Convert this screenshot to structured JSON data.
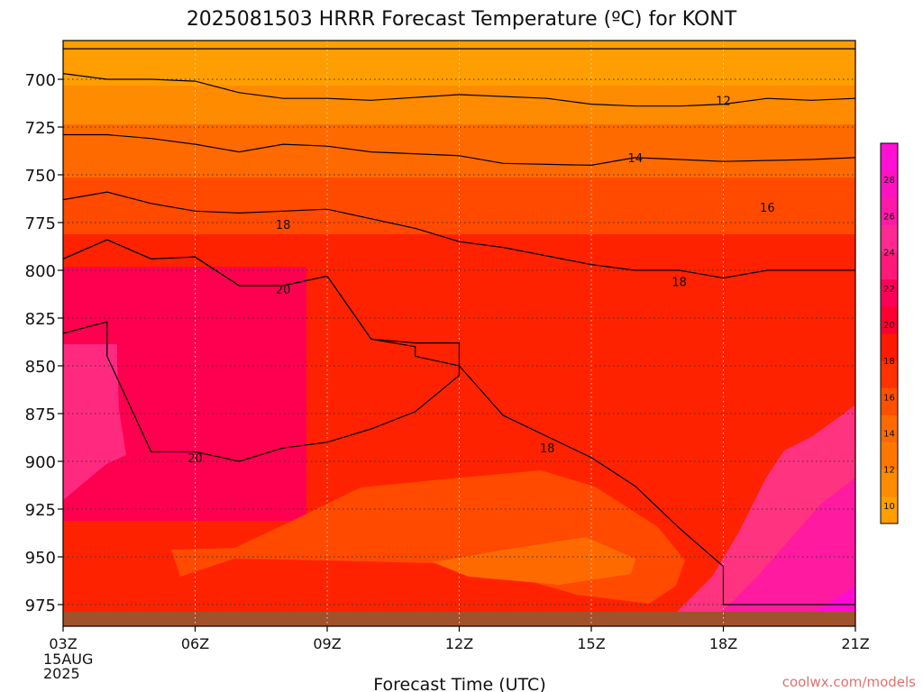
{
  "chart_data": {
    "type": "contour",
    "title": "2025081503 HRRR Forecast Temperature (ºC) for KONT",
    "xlabel": "Forecast Time (UTC)",
    "ylabel": "",
    "x_ticks": [
      "03Z",
      "06Z",
      "09Z",
      "12Z",
      "15Z",
      "18Z",
      "21Z"
    ],
    "x_start_date_lines": [
      "15AUG",
      "2025"
    ],
    "y_ticks": [
      700,
      725,
      750,
      775,
      800,
      825,
      850,
      875,
      900,
      925,
      950,
      975
    ],
    "ylim": [
      1000,
      680
    ],
    "grid": true,
    "colorbar_labels": [
      10,
      12,
      14,
      16,
      18,
      20,
      22,
      24,
      26,
      28
    ],
    "contour_labels": [
      {
        "text": "12",
        "time": "18Z",
        "pressure": 711
      },
      {
        "text": "14",
        "time": "16Z",
        "pressure": 741
      },
      {
        "text": "16",
        "time": "19Z",
        "pressure": 767
      },
      {
        "text": "18",
        "time": "08Z",
        "pressure": 776
      },
      {
        "text": "18",
        "time": "17Z",
        "pressure": 806
      },
      {
        "text": "20",
        "time": "08Z",
        "pressure": 810
      },
      {
        "text": "18",
        "time": "14Z",
        "pressure": 893
      },
      {
        "text": "20",
        "time": "06Z",
        "pressure": 898
      }
    ],
    "series": [
      {
        "name": "10",
        "points": [
          [
            "03Z",
            684
          ],
          [
            "04Z",
            684
          ],
          [
            "06Z",
            684
          ],
          [
            "08Z",
            684
          ],
          [
            "10Z",
            684
          ],
          [
            "12Z",
            684
          ],
          [
            "14Z",
            684
          ],
          [
            "15Z",
            684
          ],
          [
            "16Z",
            684
          ],
          [
            "18Z",
            684
          ],
          [
            "20Z",
            684
          ],
          [
            "21Z",
            684
          ]
        ]
      },
      {
        "name": "12",
        "points": [
          [
            "03Z",
            697
          ],
          [
            "04Z",
            700
          ],
          [
            "05Z",
            700
          ],
          [
            "06Z",
            701
          ],
          [
            "07Z",
            707
          ],
          [
            "08Z",
            710
          ],
          [
            "09Z",
            710
          ],
          [
            "10Z",
            711
          ],
          [
            "12Z",
            708
          ],
          [
            "14Z",
            710
          ],
          [
            "15Z",
            713
          ],
          [
            "16Z",
            714
          ],
          [
            "17Z",
            714
          ],
          [
            "18Z",
            713
          ],
          [
            "19Z",
            710
          ],
          [
            "20Z",
            711
          ],
          [
            "21Z",
            710
          ]
        ]
      },
      {
        "name": "14",
        "points": [
          [
            "03Z",
            729
          ],
          [
            "04Z",
            729
          ],
          [
            "05Z",
            731
          ],
          [
            "06Z",
            734
          ],
          [
            "07Z",
            738
          ],
          [
            "08Z",
            734
          ],
          [
            "09Z",
            735
          ],
          [
            "10Z",
            738
          ],
          [
            "12Z",
            740
          ],
          [
            "13Z",
            744
          ],
          [
            "15Z",
            745
          ],
          [
            "16Z",
            741
          ],
          [
            "17Z",
            742
          ],
          [
            "18Z",
            743
          ],
          [
            "20Z",
            742
          ],
          [
            "21Z",
            741
          ]
        ]
      },
      {
        "name": "16",
        "points": [
          [
            "03Z",
            763
          ],
          [
            "04Z",
            759
          ],
          [
            "05Z",
            765
          ],
          [
            "06Z",
            769
          ],
          [
            "07Z",
            770
          ],
          [
            "08Z",
            769
          ],
          [
            "09Z",
            768
          ],
          [
            "11Z",
            778
          ],
          [
            "12Z",
            785
          ],
          [
            "13Z",
            788
          ],
          [
            "15Z",
            797
          ],
          [
            "16Z",
            800
          ],
          [
            "17Z",
            800
          ],
          [
            "18Z",
            804
          ],
          [
            "19Z",
            800
          ],
          [
            "20Z",
            800
          ],
          [
            "21Z",
            800
          ]
        ]
      },
      {
        "name": "18",
        "points": [
          [
            "03Z",
            794
          ],
          [
            "04Z",
            784
          ],
          [
            "05Z",
            794
          ],
          [
            "06Z",
            793
          ],
          [
            "07Z",
            808
          ],
          [
            "08Z",
            808
          ],
          [
            "09Z",
            803
          ],
          [
            "10Z",
            836
          ],
          [
            "11Z",
            840
          ],
          [
            "11Z",
            845
          ],
          [
            "12Z",
            850
          ],
          [
            "13Z",
            876
          ],
          [
            "15Z",
            898
          ],
          [
            "16Z",
            913
          ],
          [
            "17Z",
            935
          ],
          [
            "18Z",
            955
          ],
          [
            "18Z",
            975
          ],
          [
            "20Z",
            975
          ],
          [
            "21Z",
            975
          ]
        ]
      },
      {
        "name": "20",
        "points": [
          [
            "03Z",
            833
          ],
          [
            "04Z",
            827
          ],
          [
            "04Z",
            845
          ],
          [
            "05Z",
            895
          ],
          [
            "06Z",
            895
          ],
          [
            "07Z",
            900
          ],
          [
            "08Z",
            893
          ],
          [
            "09Z",
            890
          ],
          [
            "10Z",
            883
          ],
          [
            "11Z",
            874
          ],
          [
            "12Z",
            855
          ],
          [
            "12Z",
            838
          ],
          [
            "11Z",
            838
          ],
          [
            "10Z",
            836
          ],
          [
            "09Z",
            803
          ],
          [
            "08Z",
            808
          ],
          [
            "07Z",
            808
          ],
          [
            "06Z",
            793
          ],
          [
            "05Z",
            794
          ],
          [
            "04Z",
            784
          ],
          [
            "03Z",
            794
          ]
        ]
      }
    ]
  },
  "watermark": "coolwx.com/models"
}
